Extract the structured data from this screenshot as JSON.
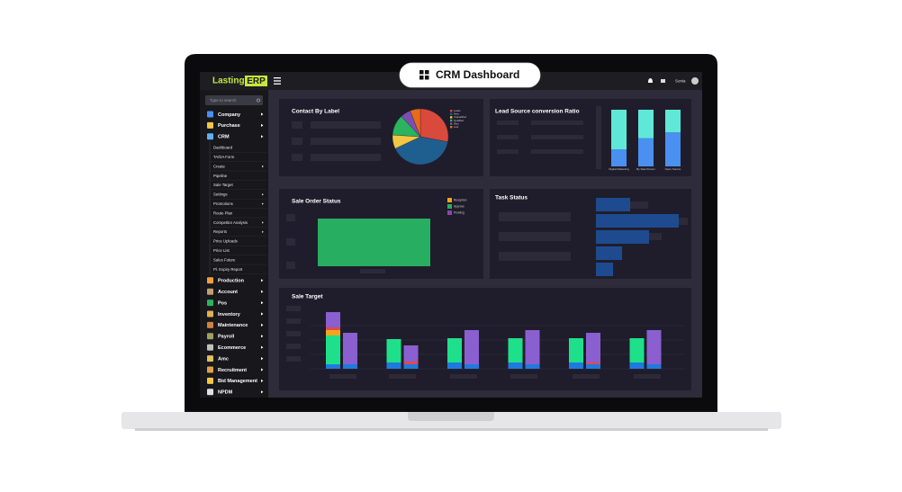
{
  "badge": {
    "title": "CRM Dashboard"
  },
  "header": {
    "logo_left": "Lasting",
    "logo_right": "ERP",
    "user": "Sonia"
  },
  "sidebar": {
    "search_placeholder": "Type to search",
    "items": [
      {
        "label": "Company",
        "level": 1,
        "color": "#4a90f0"
      },
      {
        "label": "Purchase",
        "level": 1,
        "color": "#f2c744"
      },
      {
        "label": "CRM",
        "level": 1,
        "color": "#5fb0f0"
      },
      {
        "label": "Dashboard",
        "level": 2
      },
      {
        "label": "TA/DA Form",
        "level": 2
      },
      {
        "label": "Create",
        "level": 2,
        "submenu": true
      },
      {
        "label": "Pipeline",
        "level": 2
      },
      {
        "label": "Sale Target",
        "level": 2
      },
      {
        "label": "Settings",
        "level": 2,
        "submenu": true
      },
      {
        "label": "Promotions",
        "level": 2,
        "submenu": true
      },
      {
        "label": "Route Plan",
        "level": 2
      },
      {
        "label": "Competitor Analysis",
        "level": 2,
        "submenu": true
      },
      {
        "label": "Reports",
        "level": 2,
        "submenu": true
      },
      {
        "label": "Price Uploads",
        "level": 2
      },
      {
        "label": "Price List",
        "level": 2
      },
      {
        "label": "Sales Future",
        "level": 2
      },
      {
        "label": "Pl. Expiry Report",
        "level": 2
      },
      {
        "label": "Production",
        "level": 1,
        "color": "#f2a03c"
      },
      {
        "label": "Account",
        "level": 1,
        "color": "#c0a070"
      },
      {
        "label": "Pos",
        "level": 1,
        "color": "#2ab45d"
      },
      {
        "label": "Inventory",
        "level": 1,
        "color": "#e0b050"
      },
      {
        "label": "Maintenance",
        "level": 1,
        "color": "#d08040"
      },
      {
        "label": "Payroll",
        "level": 1,
        "color": "#a0a060"
      },
      {
        "label": "Ecommerce",
        "level": 1,
        "color": "#c0c0c0"
      },
      {
        "label": "Amc",
        "level": 1,
        "color": "#e0c060"
      },
      {
        "label": "Recruitment",
        "level": 1,
        "color": "#e0a050"
      },
      {
        "label": "Bid Management",
        "level": 1,
        "color": "#f2c744"
      },
      {
        "label": "NPDM",
        "level": 1,
        "color": "#e0e0e0"
      }
    ]
  },
  "contact_by_label": {
    "title": "Contact By Label",
    "type": "pie",
    "categories": [
      "Leads",
      "New",
      "Unqualified",
      "Qualified",
      "Won",
      "Lost"
    ],
    "values": [
      28,
      40,
      8,
      12,
      6,
      6
    ],
    "colors": [
      "#d94a3c",
      "#1f5f8f",
      "#f2c744",
      "#2ab45d",
      "#7a4fb0",
      "#e86a1a"
    ]
  },
  "lead_source": {
    "title": "Lead Source conversion Ratio",
    "type": "bar",
    "categories": [
      "Digital Marketing",
      "By Sale Person",
      "Open Source"
    ],
    "ylim": [
      0,
      100
    ],
    "series": [
      {
        "color": "#4a90f0",
        "values": [
          30,
          50,
          60
        ]
      },
      {
        "color": "#5fe8d8",
        "values": [
          70,
          50,
          40
        ]
      }
    ]
  },
  "sale_order_status": {
    "title": "Sale Order Status",
    "type": "bar",
    "legend": [
      "Reception",
      "Approve",
      "Pending"
    ],
    "colors": [
      "#f2a51c",
      "#27ae60",
      "#8e44ad"
    ],
    "ylim": [
      0,
      100
    ],
    "values": [
      0,
      100,
      0
    ]
  },
  "task_status": {
    "title": "Task Status",
    "type": "bar",
    "xlim": [
      0,
      100
    ],
    "color": "#1e4b8f",
    "values": [
      38,
      92,
      59,
      29,
      19
    ]
  },
  "sale_target": {
    "title": "Sale Target",
    "type": "bar",
    "ylim": [
      0,
      65
    ],
    "left_colors": [
      "#1f7ae0",
      "#1fe08a",
      "#f2a51c",
      "#e04a4a",
      "#8a5fd0"
    ],
    "right_colors": [
      "#1f7ae0",
      "#e04a4a",
      "#8a5fd0"
    ],
    "left": [
      [
        5,
        32,
        6,
        3,
        17
      ],
      [
        7,
        26,
        0,
        0,
        0
      ],
      [
        7,
        27,
        0,
        0,
        0
      ],
      [
        7,
        27,
        0,
        0,
        0
      ],
      [
        7,
        27,
        0,
        0,
        0
      ],
      [
        7,
        27,
        0,
        0,
        0
      ]
    ],
    "right": [
      [
        5,
        0,
        35
      ],
      [
        5,
        3,
        18
      ],
      [
        5,
        0,
        38
      ],
      [
        5,
        0,
        38
      ],
      [
        5,
        2,
        33
      ],
      [
        5,
        0,
        38
      ]
    ]
  }
}
